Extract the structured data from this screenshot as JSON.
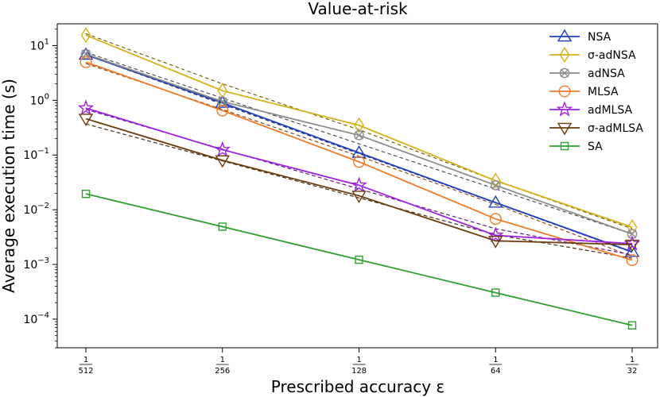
{
  "chart_data": {
    "type": "line",
    "title": "Value-at-risk",
    "xlabel": "Prescribed accuracy ε",
    "ylabel": "Average execution time (s)",
    "x": [
      0.001953125,
      0.00390625,
      0.0078125,
      0.015625,
      0.03125
    ],
    "x_tick_labels": [
      {
        "num": "1",
        "den": "512"
      },
      {
        "num": "1",
        "den": "256"
      },
      {
        "num": "1",
        "den": "128"
      },
      {
        "num": "1",
        "den": "64"
      },
      {
        "num": "1",
        "den": "32"
      }
    ],
    "y_scale": "log",
    "ylim": [
      3e-05,
      25
    ],
    "y_ticks": [
      {
        "value": 0.0001,
        "base": "10",
        "exp": "−4"
      },
      {
        "value": 0.001,
        "base": "10",
        "exp": "−3"
      },
      {
        "value": 0.01,
        "base": "10",
        "exp": "−2"
      },
      {
        "value": 0.1,
        "base": "10",
        "exp": "−1"
      },
      {
        "value": 1,
        "base": "10",
        "exp": "0"
      },
      {
        "value": 10,
        "base": "10",
        "exp": "1"
      }
    ],
    "legend_position": "top-right",
    "grid": false,
    "series": [
      {
        "name": "NSA",
        "color": "#1f3fbf",
        "marker": "triangle-up",
        "values": [
          6.8,
          0.9,
          0.11,
          0.0135,
          0.0017
        ],
        "fit": [
          6.8,
          0.85,
          0.106,
          0.0133,
          0.00166
        ]
      },
      {
        "name": "σ-adNSA",
        "color": "#d4b11a",
        "marker": "diamond",
        "values": [
          15.5,
          1.5,
          0.35,
          0.034,
          0.0048
        ],
        "fit": [
          16.5,
          2.0,
          0.29,
          0.034,
          0.0045
        ]
      },
      {
        "name": "adNSA",
        "color": "#8c8c8c",
        "marker": "x-circle",
        "values": [
          7.0,
          0.95,
          0.23,
          0.028,
          0.0036
        ],
        "fit": [
          7.5,
          1.1,
          0.16,
          0.024,
          0.0036
        ]
      },
      {
        "name": "MLSA",
        "color": "#f07a28",
        "marker": "circle",
        "values": [
          5.0,
          0.65,
          0.075,
          0.0068,
          0.0012
        ],
        "fit": [
          4.7,
          0.68,
          0.095,
          0.0125,
          0.0014
        ]
      },
      {
        "name": "adMLSA",
        "color": "#a020e0",
        "marker": "star",
        "values": [
          0.72,
          0.125,
          0.028,
          0.0034,
          0.0024
        ],
        "fit": [
          0.68,
          0.128,
          0.024,
          0.0045,
          0.0015
        ]
      },
      {
        "name": "σ-adMLSA",
        "color": "#6b3a0a",
        "marker": "triangle-down",
        "values": [
          0.46,
          0.08,
          0.018,
          0.0027,
          0.0023
        ],
        "fit": [
          0.37,
          0.078,
          0.0165,
          0.0035,
          0.0013
        ]
      },
      {
        "name": "SA",
        "color": "#2ca02c",
        "marker": "square",
        "values": [
          0.0195,
          0.0049,
          0.00122,
          0.000305,
          7.7e-05
        ],
        "fit": [
          0.0195,
          0.0049,
          0.00122,
          0.000305,
          7.7e-05
        ]
      }
    ]
  }
}
